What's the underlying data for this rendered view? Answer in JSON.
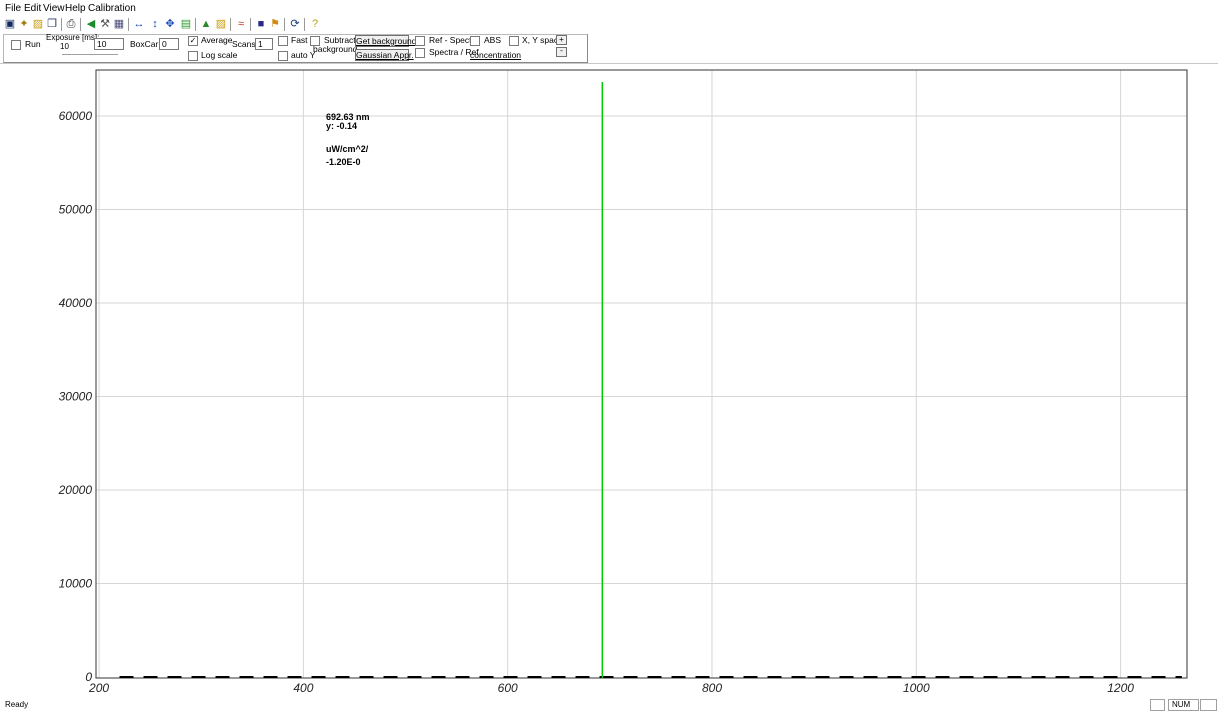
{
  "menu": {
    "items": [
      "File",
      "Edit",
      "View",
      "Help",
      "Calibration"
    ]
  },
  "toolbar": {
    "icons": [
      "save-icon",
      "new-icon",
      "open-icon",
      "copy-icon",
      "print-icon",
      "back-icon",
      "settings-icon",
      "image-icon",
      "h-arrow-icon",
      "v-arrow-icon",
      "move-icon",
      "chart-icon",
      "up-icon",
      "folder-icon",
      "graph-icon",
      "box-icon",
      "flag-icon",
      "refresh-icon",
      "help-icon"
    ]
  },
  "controls": {
    "run": "Run",
    "exposure_label": "Exposure [ms]:",
    "exposure_sub": "10",
    "exposure_value": "10",
    "boxcar_label": "BoxCar:",
    "boxcar_value": "0",
    "average": "Average",
    "average_checked": true,
    "log_scale": "Log scale",
    "scans_label": "Scans:",
    "scans_value": "1",
    "fast": "Fast",
    "auto_y": "auto Y",
    "subtract": "Subtract",
    "background": "background",
    "get_background": "Get background",
    "gaussian": "Gaussian Appr.",
    "ref_spectra": "Ref - Spectra",
    "spectra_ref": "Spectra / Ref",
    "abs": "ABS",
    "concentration": "concentration",
    "xy_space": "X, Y space",
    "spin_up": "+",
    "spin_down": "-"
  },
  "readout": {
    "wavelength": "692.63 nm",
    "y": "y: -0.14",
    "unit": "uW/cm^2/",
    "value": "-1.20E-0"
  },
  "chart_data": {
    "type": "line",
    "x_ticks": [
      200,
      400,
      600,
      800,
      1000,
      1200
    ],
    "y_ticks": [
      0,
      10000,
      20000,
      30000,
      40000,
      50000,
      60000
    ],
    "xlim": [
      197,
      1265
    ],
    "ylim": [
      0,
      64000
    ],
    "grid": true,
    "cursor_x": 692.63,
    "cursor_color": "#00cc00",
    "series": [
      {
        "x": [
          220,
          1260
        ],
        "y": [
          0,
          0
        ],
        "style": "dashed",
        "color": "#000000"
      }
    ]
  },
  "status": {
    "text": "Ready",
    "num": "NUM"
  }
}
